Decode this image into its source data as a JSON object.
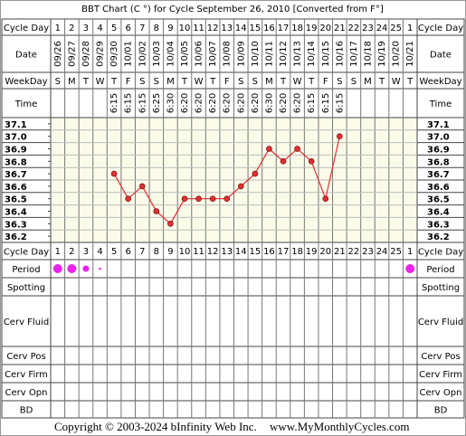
{
  "chart_data": {
    "type": "line",
    "title": "BBT Chart (C °) for Cycle September 26, 2010  [Converted from F°]",
    "row_labels": [
      "Cycle Day",
      "Date",
      "WeekDay",
      "Time",
      "Cycle Day",
      "Period",
      "Spotting",
      "Cerv Fluid",
      "Cerv Pos",
      "Cerv Firm",
      "Cerv Opn",
      "BD"
    ],
    "categories": [
      "1",
      "2",
      "3",
      "4",
      "5",
      "6",
      "7",
      "8",
      "9",
      "10",
      "11",
      "12",
      "13",
      "14",
      "15",
      "16",
      "17",
      "18",
      "19",
      "20",
      "21",
      "22",
      "23",
      "24",
      "25",
      "1"
    ],
    "dates": [
      "09/26",
      "09/27",
      "09/28",
      "09/29",
      "09/30",
      "10/01",
      "10/02",
      "10/03",
      "10/04",
      "10/05",
      "10/06",
      "10/07",
      "10/08",
      "10/09",
      "10/10",
      "10/11",
      "10/12",
      "10/13",
      "10/14",
      "10/15",
      "10/16",
      "10/17",
      "10/18",
      "10/19",
      "10/20",
      "10/21"
    ],
    "weekdays": [
      "S",
      "M",
      "T",
      "W",
      "T",
      "F",
      "S",
      "S",
      "M",
      "T",
      "W",
      "T",
      "F",
      "S",
      "S",
      "M",
      "T",
      "W",
      "T",
      "F",
      "S",
      "S",
      "M",
      "T",
      "W",
      "T"
    ],
    "times": [
      null,
      null,
      null,
      null,
      "6:15",
      "6:15",
      "6:15",
      "6:25",
      "6:30",
      "6:20",
      "6:20",
      "6:20",
      "6:20",
      "6:20",
      "6:20",
      "6:30",
      "6:20",
      "6:20",
      "6:15",
      "6:15",
      "6:15",
      null,
      null,
      null,
      null,
      null
    ],
    "values": [
      null,
      null,
      null,
      null,
      36.7,
      36.5,
      36.6,
      36.4,
      36.3,
      36.5,
      36.5,
      36.5,
      36.5,
      36.6,
      36.7,
      36.9,
      36.8,
      36.9,
      36.8,
      36.5,
      37.0,
      null,
      null,
      null,
      null,
      null
    ],
    "color": "#e03030",
    "period": [
      3,
      3,
      2,
      1,
      null,
      null,
      null,
      null,
      null,
      null,
      null,
      null,
      null,
      null,
      null,
      null,
      null,
      null,
      null,
      null,
      null,
      null,
      null,
      null,
      null,
      3
    ],
    "period_color": "#ee22ee",
    "ylim": [
      36.15,
      37.15
    ],
    "yticks": [
      37.1,
      {
        "value": 37,
        "label": "37.0"
      },
      36.9,
      36.8,
      36.7,
      36.6,
      36.5,
      36.4,
      36.3,
      36.2
    ]
  },
  "footer": {
    "copyright": "Copyright © 2003-2024 bInfinity Web Inc.",
    "url": "www.MyMonthlyCycles.com"
  }
}
